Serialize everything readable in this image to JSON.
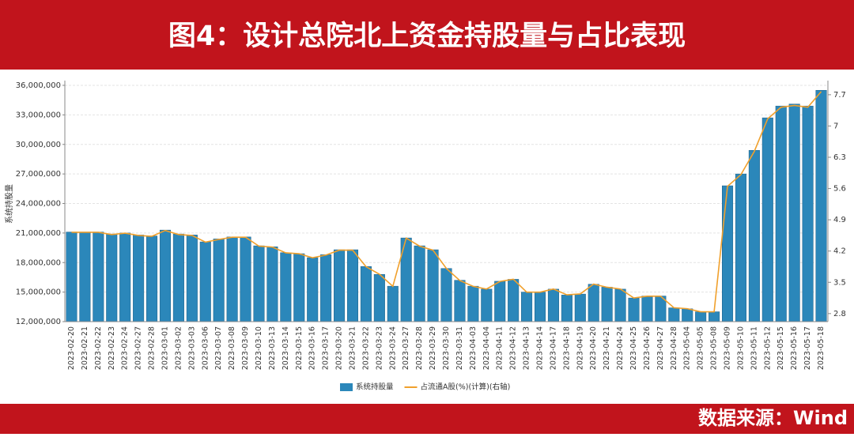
{
  "header": {
    "title": "图4：设计总院北上资金持股量与占比表现"
  },
  "footer": {
    "source": "数据来源：Wind"
  },
  "chart_data": {
    "type": "bar",
    "ylabel": "系统持股量",
    "categories": [
      "2023-02-20",
      "2023-02-21",
      "2023-02-22",
      "2023-02-23",
      "2023-02-24",
      "2023-02-27",
      "2023-02-28",
      "2023-03-01",
      "2023-03-02",
      "2023-03-03",
      "2023-03-06",
      "2023-03-07",
      "2023-03-08",
      "2023-03-09",
      "2023-03-10",
      "2023-03-13",
      "2023-03-14",
      "2023-03-15",
      "2023-03-16",
      "2023-03-17",
      "2023-03-20",
      "2023-03-21",
      "2023-03-22",
      "2023-03-23",
      "2023-03-24",
      "2023-03-27",
      "2023-03-28",
      "2023-03-29",
      "2023-03-30",
      "2023-03-31",
      "2023-04-03",
      "2023-04-04",
      "2023-04-11",
      "2023-04-12",
      "2023-04-13",
      "2023-04-14",
      "2023-04-17",
      "2023-04-18",
      "2023-04-19",
      "2023-04-20",
      "2023-04-21",
      "2023-04-24",
      "2023-04-25",
      "2023-04-26",
      "2023-04-27",
      "2023-04-28",
      "2023-05-04",
      "2023-05-05",
      "2023-05-08",
      "2023-05-09",
      "2023-05-10",
      "2023-05-11",
      "2023-05-12",
      "2023-05-15",
      "2023-05-16",
      "2023-05-17",
      "2023-05-18"
    ],
    "series": [
      {
        "name": "系统持股量",
        "type": "bar",
        "color": "#2b87ba",
        "values": [
          21100000,
          21100000,
          21100000,
          20900000,
          21000000,
          20800000,
          20700000,
          21300000,
          20900000,
          20800000,
          20100000,
          20400000,
          20600000,
          20600000,
          19700000,
          19600000,
          19000000,
          18900000,
          18500000,
          18800000,
          19300000,
          19300000,
          17600000,
          16800000,
          15600000,
          20500000,
          19700000,
          19300000,
          17400000,
          16200000,
          15600000,
          15300000,
          16100000,
          16300000,
          15000000,
          15000000,
          15300000,
          14700000,
          14800000,
          15800000,
          15500000,
          15300000,
          14400000,
          14600000,
          14600000,
          13400000,
          13300000,
          13000000,
          13000000,
          25800000,
          27000000,
          29400000,
          32700000,
          33900000,
          34100000,
          33900000,
          35500000
        ]
      },
      {
        "name": "占流通A股(%)(计算)(右轴)",
        "type": "line",
        "axis": "y2",
        "color": "#f0a02c",
        "values": [
          4.62,
          4.62,
          4.62,
          4.57,
          4.6,
          4.55,
          4.53,
          4.66,
          4.57,
          4.55,
          4.4,
          4.46,
          4.51,
          4.51,
          4.31,
          4.29,
          4.16,
          4.14,
          4.05,
          4.11,
          4.22,
          4.22,
          3.85,
          3.68,
          3.41,
          4.49,
          4.31,
          4.22,
          3.81,
          3.54,
          3.41,
          3.35,
          3.52,
          3.57,
          3.28,
          3.28,
          3.35,
          3.22,
          3.24,
          3.46,
          3.39,
          3.35,
          3.15,
          3.19,
          3.19,
          2.93,
          2.91,
          2.84,
          2.84,
          5.65,
          5.91,
          6.43,
          7.16,
          7.42,
          7.46,
          7.42,
          7.77
        ]
      }
    ],
    "ylim": [
      12000000,
      36000000
    ],
    "yticks": [
      {
        "value": 12000000,
        "label": "12,000,000"
      },
      {
        "value": 15000000,
        "label": "15,000,000"
      },
      {
        "value": 18000000,
        "label": "18,000,000"
      },
      {
        "value": 21000000,
        "label": "21,000,000"
      },
      {
        "value": 24000000,
        "label": "24,000,000"
      },
      {
        "value": 27000000,
        "label": "27,000,000"
      },
      {
        "value": 30000000,
        "label": "30,000,000"
      },
      {
        "value": 33000000,
        "label": "33,000,000"
      },
      {
        "value": 36000000,
        "label": "36,000,000"
      }
    ],
    "y2lim": [
      2.62,
      7.91
    ],
    "y2ticks": [
      2.8,
      3.5,
      4.2,
      4.9,
      5.6,
      6.3,
      7,
      7.7
    ],
    "grid": true,
    "legend": "bottom"
  }
}
